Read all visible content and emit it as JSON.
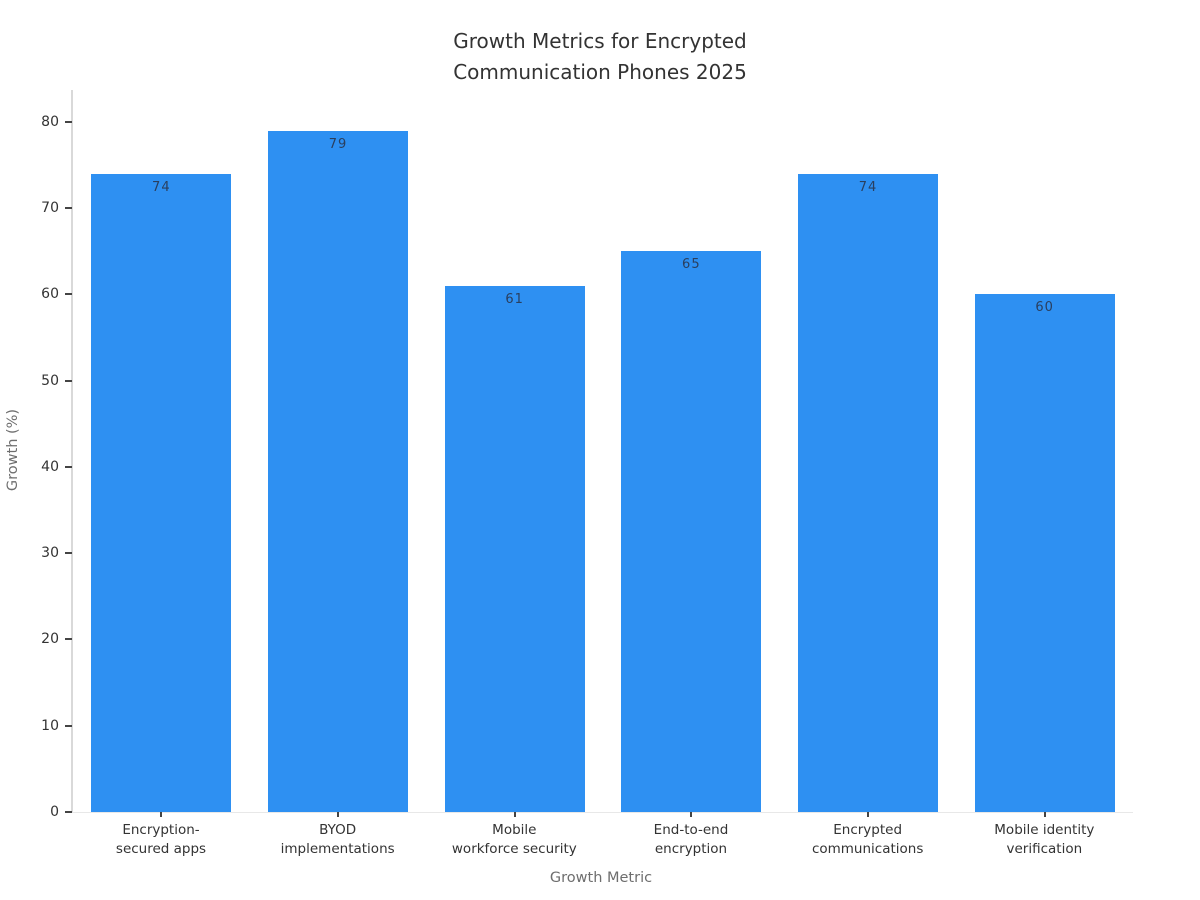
{
  "chart_data": {
    "type": "bar",
    "title": "Growth Metrics for Encrypted Communication Phones 2025",
    "title_lines": [
      "Growth Metrics for Encrypted",
      "Communication Phones 2025"
    ],
    "xlabel": "Growth Metric",
    "ylabel": "Growth (%)",
    "categories": [
      "Encryption-secured apps",
      "BYOD implementations",
      "Mobile workforce security",
      "End-to-end encryption",
      "Encrypted communications",
      "Mobile identity verification"
    ],
    "category_lines": [
      [
        "Encryption-",
        "secured apps"
      ],
      [
        "BYOD",
        "implementations"
      ],
      [
        "Mobile",
        "workforce security"
      ],
      [
        "End-to-end",
        "encryption"
      ],
      [
        "Encrypted",
        "communications"
      ],
      [
        "Mobile identity",
        "verification"
      ]
    ],
    "values": [
      74,
      79,
      61,
      65,
      74,
      60
    ],
    "bar_labels": [
      "74",
      "79",
      "61",
      "65",
      "74",
      "60"
    ],
    "yticks": [
      0,
      10,
      20,
      30,
      40,
      50,
      60,
      70,
      80
    ],
    "ylim": [
      0,
      83.7
    ],
    "grid": false,
    "legend": "none",
    "bar_color": "#2e90f2",
    "bar_label_color": "#2a3f5f",
    "tick_label_color": "#333333",
    "axis_title_color": "#6e6e6e",
    "axis_line_color": "#d9d9d9",
    "background_color": "#ffffff"
  }
}
